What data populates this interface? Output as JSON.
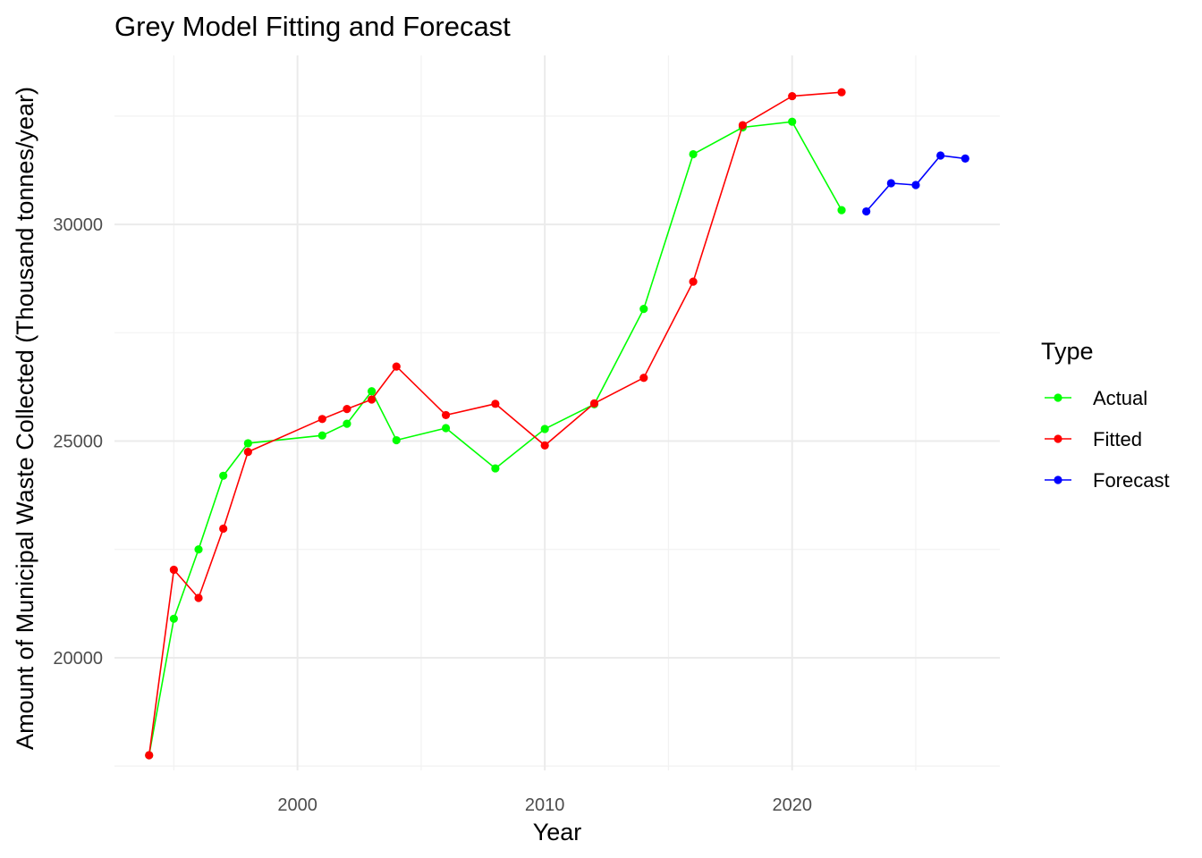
{
  "chart_data": {
    "type": "line",
    "title": "Grey Model Fitting and Forecast",
    "xlabel": "Year",
    "ylabel": "Amount of Municipal Waste Collected (Thousand tonnes/year)",
    "xlim": [
      1992.6,
      2028.4
    ],
    "ylim": [
      17400,
      33900
    ],
    "x_ticks": [
      2000,
      2010,
      2020
    ],
    "y_ticks": [
      20000,
      25000,
      30000
    ],
    "grid": true,
    "legend": {
      "title": "Type",
      "position": "right"
    },
    "series": [
      {
        "name": "Actual",
        "color": "#00ff00",
        "points": [
          [
            1994,
            17750
          ],
          [
            1995,
            20900
          ],
          [
            1996,
            22500
          ],
          [
            1997,
            24200
          ],
          [
            1998,
            24950
          ],
          [
            2001,
            25130
          ],
          [
            2002,
            25400
          ],
          [
            2003,
            26150
          ],
          [
            2004,
            25020
          ],
          [
            2006,
            25300
          ],
          [
            2008,
            24370
          ],
          [
            2010,
            25280
          ],
          [
            2012,
            25850
          ],
          [
            2014,
            28050
          ],
          [
            2016,
            31620
          ],
          [
            2018,
            32240
          ],
          [
            2020,
            32370
          ],
          [
            2022,
            30330
          ]
        ]
      },
      {
        "name": "Fitted",
        "color": "#ff0000",
        "points": [
          [
            1994,
            17750
          ],
          [
            1995,
            22030
          ],
          [
            1996,
            21380
          ],
          [
            1997,
            22980
          ],
          [
            1998,
            24750
          ],
          [
            2001,
            25510
          ],
          [
            2002,
            25740
          ],
          [
            2003,
            25960
          ],
          [
            2004,
            26720
          ],
          [
            2006,
            25600
          ],
          [
            2008,
            25860
          ],
          [
            2010,
            24900
          ],
          [
            2012,
            25870
          ],
          [
            2014,
            26460
          ],
          [
            2016,
            28680
          ],
          [
            2018,
            32290
          ],
          [
            2020,
            32960
          ],
          [
            2022,
            33050
          ]
        ]
      },
      {
        "name": "Forecast",
        "color": "#0000ff",
        "points": [
          [
            2023,
            30300
          ],
          [
            2024,
            30950
          ],
          [
            2025,
            30910
          ],
          [
            2026,
            31590
          ],
          [
            2027,
            31520
          ]
        ]
      }
    ]
  }
}
